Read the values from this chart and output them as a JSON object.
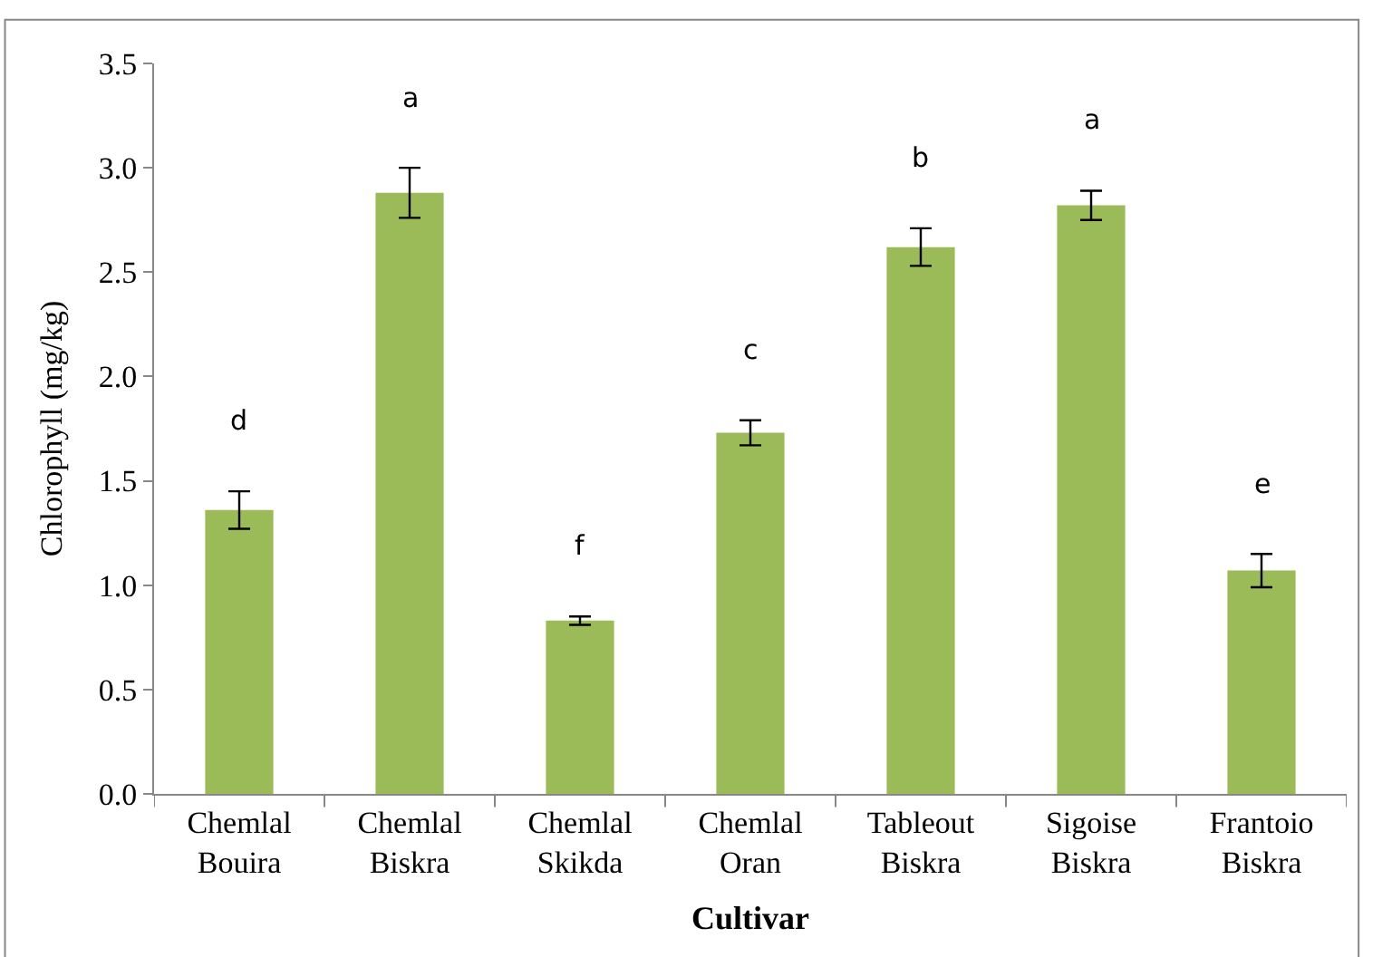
{
  "chart_data": {
    "type": "bar",
    "xlabel": "Cultivar",
    "ylabel": "Chlorophyll (mg/kg)",
    "categories": [
      "Chemlal\nBouira",
      "Chemlal\nBiskra",
      "Chemlal\nSkikda",
      "Chemlal\nOran",
      "Tableout\nBiskra",
      "Sigoise\nBiskra",
      "Frantoio\nBiskra"
    ],
    "values": [
      1.36,
      2.88,
      0.83,
      1.73,
      2.62,
      2.82,
      1.07
    ],
    "errors": [
      0.09,
      0.12,
      0.02,
      0.06,
      0.09,
      0.07,
      0.08
    ],
    "color": "#9bbb59",
    "ylim": [
      0,
      3.5
    ],
    "yticks": [
      {
        "value": 0,
        "label": "0.0"
      },
      {
        "value": 0.5,
        "label": "0.5"
      },
      {
        "value": 1,
        "label": "1.0"
      },
      {
        "value": 1.5,
        "label": "1.5"
      },
      {
        "value": 2,
        "label": "2.0"
      },
      {
        "value": 2.5,
        "label": "2.5"
      },
      {
        "value": 3,
        "label": "3.0"
      },
      {
        "value": 3.5,
        "label": "3.5"
      }
    ],
    "legend": false,
    "annotations": [
      "d",
      "a",
      "f",
      "c",
      "b",
      "a",
      "e"
    ]
  }
}
